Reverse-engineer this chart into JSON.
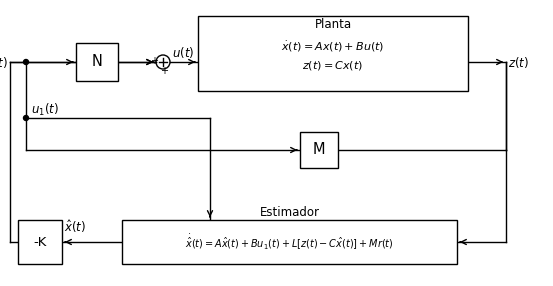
{
  "title": "Planta",
  "estimador_label": "Estimador",
  "block_N": "N",
  "block_M": "M",
  "block_K": "-K",
  "plant_eq1": "$\\dot{x}(t)=Ax(t)+Bu(t)$",
  "plant_eq2": "$z(t)=Cx(t)$",
  "estimator_eq": "$\\dot{\\hat{x}}(t)=A\\hat{x}(t)+Bu_1(t)+L[z(t)-C\\hat{x}(t)]+Mr(t)$",
  "label_r": "$r(t)$",
  "label_u": "$u(t)$",
  "label_z": "$z(t)$",
  "label_u1": "$u_1(t)$",
  "label_xhat": "$\\hat{x}(t)$",
  "bg_color": "#ffffff",
  "line_color": "#000000",
  "font_size": 8.5
}
